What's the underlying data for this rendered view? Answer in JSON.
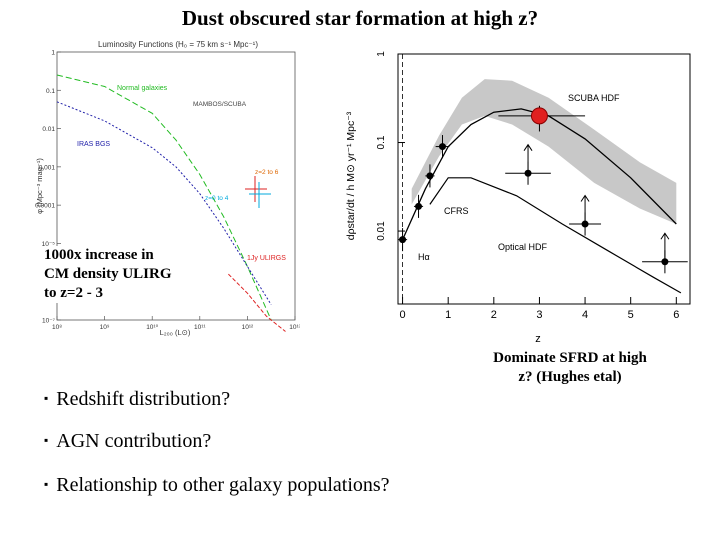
{
  "slide": {
    "title": "Dust obscured star formation at high z?",
    "overlay_text": [
      "1000x increase in",
      "CM density ULIRG",
      "to z=2 - 3"
    ],
    "caption": [
      "Dominate SFRD at high",
      "z? (Hughes  etal)"
    ],
    "bullets": [
      "Redshift distribution?",
      "AGN contribution?",
      "Relationship to other galaxy populations?"
    ]
  },
  "chart_data": [
    {
      "type": "line",
      "title": "Luminosity Functions (H₀ = 75 km s⁻¹ Mpc⁻¹)",
      "xlabel": "L₂₀₀ (L⊙)",
      "ylabel": "φ (Mpc⁻³ mag⁻¹)",
      "x_ticks": [
        "10⁸",
        "10⁹",
        "10¹⁰",
        "10¹¹",
        "10¹²",
        "10¹³"
      ],
      "y_ticks": [
        "1",
        "0.1",
        "0.01",
        "0.001",
        "0.0001",
        "10⁻⁵",
        "10⁻⁶",
        "10⁻⁷"
      ],
      "series": [
        {
          "name": "Normal galaxies",
          "color": "#22bb22",
          "x": [
            8.0,
            9.0,
            10.0,
            10.5,
            11.0,
            11.5,
            12.0,
            12.5
          ],
          "y": [
            -0.6,
            -0.9,
            -1.6,
            -2.3,
            -3.2,
            -4.3,
            -5.6,
            -7.0
          ]
        },
        {
          "name": "IRAS BGS",
          "color": "#2222aa",
          "x": [
            8.0,
            9.0,
            10.0,
            10.5,
            11.0,
            11.5,
            12.0,
            12.5
          ],
          "y": [
            -1.3,
            -1.8,
            -2.5,
            -3.0,
            -3.7,
            -4.6,
            -5.6,
            -6.6
          ]
        },
        {
          "name": "1Jy ULIRGS",
          "color": "#dd2222",
          "x": [
            11.6,
            12.0,
            12.4,
            12.8
          ],
          "y": [
            -5.8,
            -6.3,
            -6.9,
            -7.3
          ]
        }
      ],
      "labels": [
        "MAMBOS/SCUBA",
        "z=2 to 6",
        "z=0 to 4"
      ]
    },
    {
      "type": "scatter",
      "xlabel": "z",
      "ylabel": "dρstar/dt / h M⊙ yr⁻¹ Mpc⁻³",
      "x_ticks": [
        "0",
        "1",
        "2",
        "3",
        "4",
        "5",
        "6"
      ],
      "y_ticks": [
        "1",
        "0.1",
        "0.01"
      ],
      "xlim": [
        -0.1,
        6.3
      ],
      "ylim": [
        0.0015,
        1.0
      ],
      "log_y": true,
      "points": [
        {
          "x": 0.0,
          "y": 0.008
        },
        {
          "x": 0.35,
          "y": 0.019
        },
        {
          "x": 0.6,
          "y": 0.042
        },
        {
          "x": 0.875,
          "y": 0.09
        },
        {
          "x": 2.75,
          "y": 0.045
        },
        {
          "x": 4.0,
          "y": 0.012
        },
        {
          "x": 5.75,
          "y": 0.0045
        }
      ],
      "highlight_point": {
        "x": 3.0,
        "y": 0.2,
        "color": "#e02020"
      },
      "series_labels": [
        "SCUBA HDF",
        "CFRS",
        "Hα",
        "Optical HDF"
      ]
    }
  ]
}
